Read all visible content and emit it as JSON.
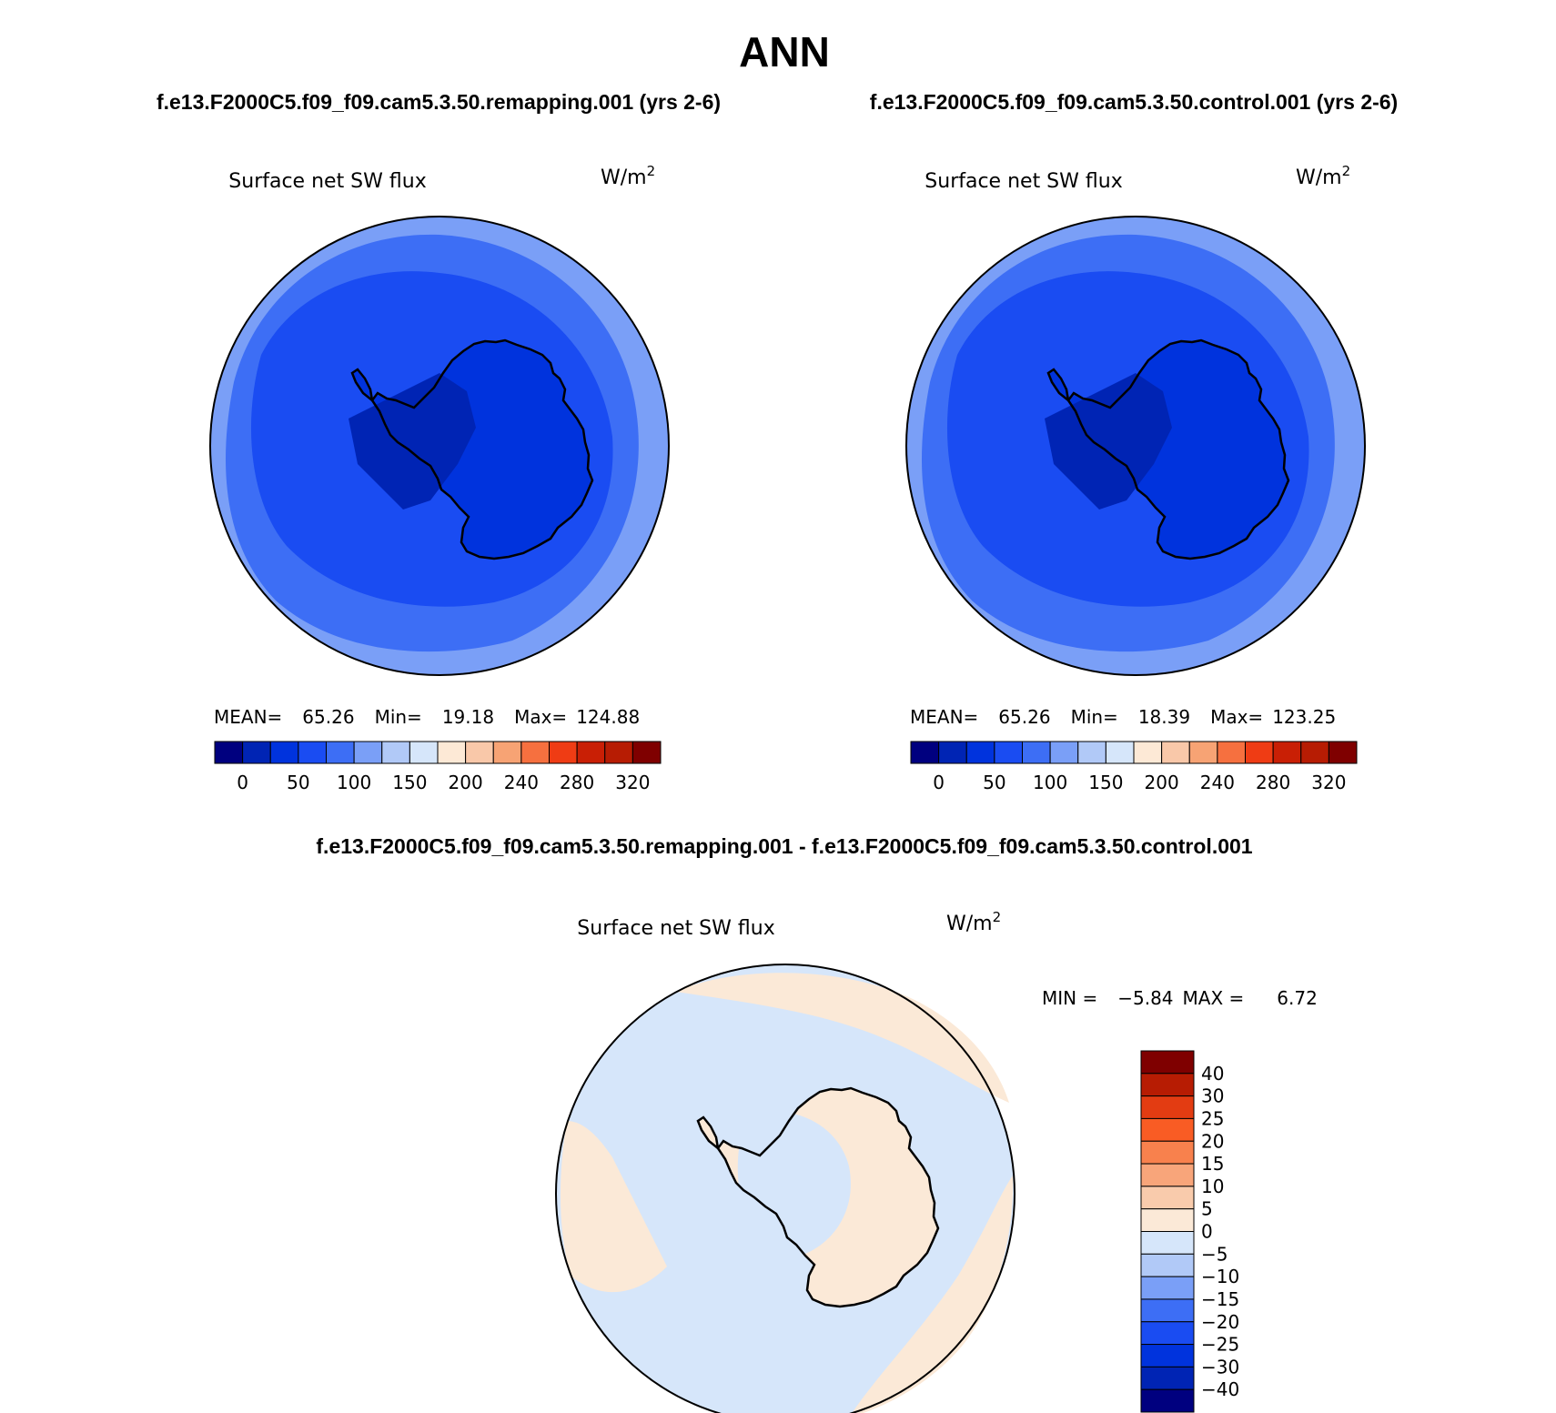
{
  "page": {
    "title": "ANN"
  },
  "panels": [
    {
      "case_title": "f.e13.F2000C5.f09_f09.cam5.3.50.remapping.001 (yrs 2-6)",
      "variable": "Surface net SW flux",
      "units_base": "W/m",
      "units_exp": "2",
      "stats": {
        "mean_label": "MEAN=",
        "mean": "65.26",
        "min_label": "Min=",
        "min": "19.18",
        "max_label": "Max=",
        "max": "124.88"
      }
    },
    {
      "case_title": "f.e13.F2000C5.f09_f09.cam5.3.50.control.001 (yrs 2-6)",
      "variable": "Surface net SW flux",
      "units_base": "W/m",
      "units_exp": "2",
      "stats": {
        "mean_label": "MEAN=",
        "mean": "65.26",
        "min_label": "Min=",
        "min": "18.39",
        "max_label": "Max=",
        "max": "123.25"
      }
    },
    {
      "case_title": "f.e13.F2000C5.f09_f09.cam5.3.50.remapping.001 - f.e13.F2000C5.f09_f09.cam5.3.50.control.001",
      "variable": "Surface net SW flux",
      "units_base": "W/m",
      "units_exp": "2",
      "stats": {
        "min_label": "MIN =",
        "min": "−5.84",
        "max_label": "MAX =",
        "max": "6.72"
      }
    }
  ],
  "colorbar_abs": {
    "colors": [
      "#00007f",
      "#0024b4",
      "#0033dd",
      "#1a4cf2",
      "#3d6ef5",
      "#7a9ff7",
      "#b1c9f7",
      "#d6e6fa",
      "#fde9d6",
      "#f9c8a9",
      "#f7a374",
      "#f6703f",
      "#ef3c14",
      "#c91f05",
      "#b71c03",
      "#7f0000"
    ],
    "ticks": [
      "0",
      "50",
      "100",
      "150",
      "200",
      "240",
      "280",
      "320"
    ]
  },
  "colorbar_diff": {
    "colors": [
      "#7f0000",
      "#b71c03",
      "#e33c12",
      "#f95c24",
      "#f8814d",
      "#f8a57a",
      "#f9cbac",
      "#fbe9d7",
      "#d6e6fa",
      "#b1c9f7",
      "#7a9ff7",
      "#3d6ef5",
      "#1a4cf2",
      "#0033dd",
      "#0024b4",
      "#00007f"
    ],
    "ticks": [
      "40",
      "30",
      "25",
      "20",
      "15",
      "10",
      "5",
      "0",
      "−5",
      "−10",
      "−15",
      "−20",
      "−25",
      "−30",
      "−40"
    ]
  },
  "map_colors": {
    "ring_outer": "#7a9ff7",
    "ring_mid": "#3d6ef5",
    "ring_inner": "#1a4cf2",
    "continent": "#0033dd",
    "interior": "#0024b4",
    "diff_pos": "#fbe9d7",
    "diff_neg": "#d6e6fa"
  }
}
